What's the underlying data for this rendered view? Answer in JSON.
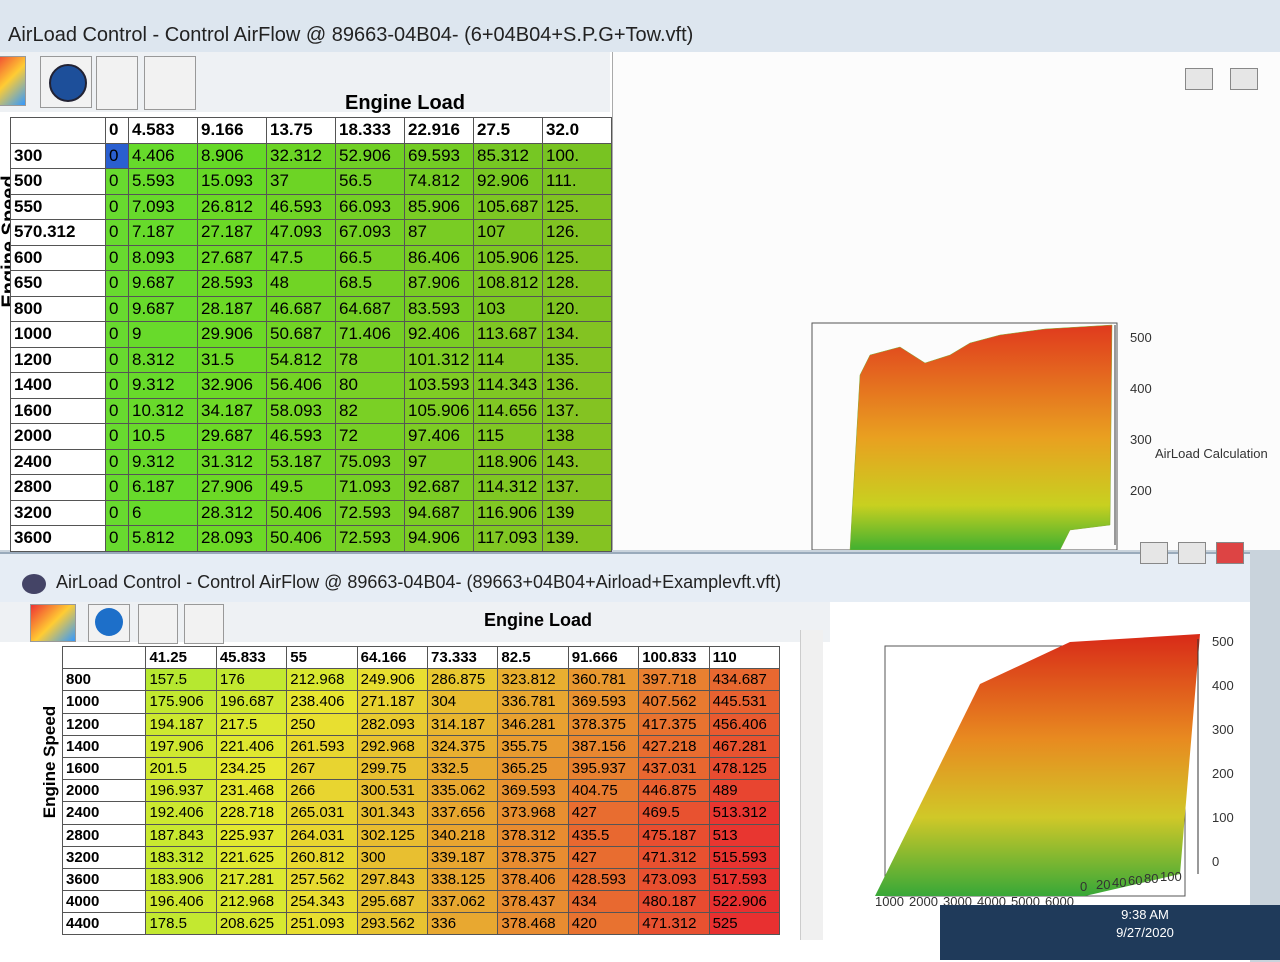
{
  "window1": {
    "title": "AirLoad Control - Control AirFlow @ 89663-04B04- (6+04B04+S.P.G+Tow.vft)",
    "table": {
      "column_title": "Engine Load",
      "row_title": "Engine Speed",
      "columns": [
        "0",
        "4.583",
        "9.166",
        "13.75",
        "18.333",
        "22.916",
        "27.5",
        "32.0"
      ],
      "rows": [
        {
          "label": "300",
          "cells": [
            "0",
            "4.406",
            "8.906",
            "32.312",
            "52.906",
            "69.593",
            "85.312",
            "100."
          ]
        },
        {
          "label": "500",
          "cells": [
            "0",
            "5.593",
            "15.093",
            "37",
            "56.5",
            "74.812",
            "92.906",
            "111."
          ]
        },
        {
          "label": "550",
          "cells": [
            "0",
            "7.093",
            "26.812",
            "46.593",
            "66.093",
            "85.906",
            "105.687",
            "125."
          ]
        },
        {
          "label": "570.312",
          "cells": [
            "0",
            "7.187",
            "27.187",
            "47.093",
            "67.093",
            "87",
            "107",
            "126."
          ]
        },
        {
          "label": "600",
          "cells": [
            "0",
            "8.093",
            "27.687",
            "47.5",
            "66.5",
            "86.406",
            "105.906",
            "125."
          ]
        },
        {
          "label": "650",
          "cells": [
            "0",
            "9.687",
            "28.593",
            "48",
            "68.5",
            "87.906",
            "108.812",
            "128."
          ]
        },
        {
          "label": "800",
          "cells": [
            "0",
            "9.687",
            "28.187",
            "46.687",
            "64.687",
            "83.593",
            "103",
            "120."
          ]
        },
        {
          "label": "1000",
          "cells": [
            "0",
            "9",
            "29.906",
            "50.687",
            "71.406",
            "92.406",
            "113.687",
            "134."
          ]
        },
        {
          "label": "1200",
          "cells": [
            "0",
            "8.312",
            "31.5",
            "54.812",
            "78",
            "101.312",
            "114",
            "135."
          ]
        },
        {
          "label": "1400",
          "cells": [
            "0",
            "9.312",
            "32.906",
            "56.406",
            "80",
            "103.593",
            "114.343",
            "136."
          ]
        },
        {
          "label": "1600",
          "cells": [
            "0",
            "10.312",
            "34.187",
            "58.093",
            "82",
            "105.906",
            "114.656",
            "137."
          ]
        },
        {
          "label": "2000",
          "cells": [
            "0",
            "10.5",
            "29.687",
            "46.593",
            "72",
            "97.406",
            "115",
            "138"
          ]
        },
        {
          "label": "2400",
          "cells": [
            "0",
            "9.312",
            "31.312",
            "53.187",
            "75.093",
            "97",
            "118.906",
            "143."
          ]
        },
        {
          "label": "2800",
          "cells": [
            "0",
            "6.187",
            "27.906",
            "49.5",
            "71.093",
            "92.687",
            "114.312",
            "137."
          ]
        },
        {
          "label": "3200",
          "cells": [
            "0",
            "6",
            "28.312",
            "50.406",
            "72.593",
            "94.687",
            "116.906",
            "139"
          ]
        },
        {
          "label": "3600",
          "cells": [
            "0",
            "5.812",
            "28.093",
            "50.406",
            "72.593",
            "94.906",
            "117.093",
            "139."
          ]
        }
      ]
    },
    "chart": {
      "z_labels": [
        "500",
        "400",
        "300",
        "200"
      ],
      "z_title": "AirLoad Calculation"
    }
  },
  "window2": {
    "title": "AirLoad Control - Control AirFlow @ 89663-04B04- (89663+04B04+Airload+Examplevft.vft)",
    "table": {
      "column_title": "Engine Load",
      "row_title": "Engine Speed",
      "columns": [
        "41.25",
        "45.833",
        "55",
        "64.166",
        "73.333",
        "82.5",
        "91.666",
        "100.833",
        "110"
      ],
      "rows": [
        {
          "label": "800",
          "cells": [
            "157.5",
            "176",
            "212.968",
            "249.906",
            "286.875",
            "323.812",
            "360.781",
            "397.718",
            "434.687"
          ]
        },
        {
          "label": "1000",
          "cells": [
            "175.906",
            "196.687",
            "238.406",
            "271.187",
            "304",
            "336.781",
            "369.593",
            "407.562",
            "445.531"
          ]
        },
        {
          "label": "1200",
          "cells": [
            "194.187",
            "217.5",
            "250",
            "282.093",
            "314.187",
            "346.281",
            "378.375",
            "417.375",
            "456.406"
          ]
        },
        {
          "label": "1400",
          "cells": [
            "197.906",
            "221.406",
            "261.593",
            "292.968",
            "324.375",
            "355.75",
            "387.156",
            "427.218",
            "467.281"
          ]
        },
        {
          "label": "1600",
          "cells": [
            "201.5",
            "234.25",
            "267",
            "299.75",
            "332.5",
            "365.25",
            "395.937",
            "437.031",
            "478.125"
          ]
        },
        {
          "label": "2000",
          "cells": [
            "196.937",
            "231.468",
            "266",
            "300.531",
            "335.062",
            "369.593",
            "404.75",
            "446.875",
            "489"
          ]
        },
        {
          "label": "2400",
          "cells": [
            "192.406",
            "228.718",
            "265.031",
            "301.343",
            "337.656",
            "373.968",
            "427",
            "469.5",
            "513.312"
          ]
        },
        {
          "label": "2800",
          "cells": [
            "187.843",
            "225.937",
            "264.031",
            "302.125",
            "340.218",
            "378.312",
            "435.5",
            "475.187",
            "513"
          ]
        },
        {
          "label": "3200",
          "cells": [
            "183.312",
            "221.625",
            "260.812",
            "300",
            "339.187",
            "378.375",
            "427",
            "471.312",
            "515.593"
          ]
        },
        {
          "label": "3600",
          "cells": [
            "183.906",
            "217.281",
            "257.562",
            "297.843",
            "338.125",
            "378.406",
            "428.593",
            "473.093",
            "517.593"
          ]
        },
        {
          "label": "4000",
          "cells": [
            "196.406",
            "212.968",
            "254.343",
            "295.687",
            "337.062",
            "378.437",
            "434",
            "480.187",
            "522.906"
          ]
        },
        {
          "label": "4400",
          "cells": [
            "178.5",
            "208.625",
            "251.093",
            "293.562",
            "336",
            "378.468",
            "420",
            "471.312",
            "525"
          ]
        }
      ]
    },
    "chart": {
      "z_labels": [
        "500",
        "400",
        "300",
        "200",
        "100",
        "0"
      ],
      "x_labels": [
        "1000",
        "2000",
        "3000",
        "4000",
        "5000",
        "6000"
      ],
      "y_labels": [
        "0",
        "20",
        "40",
        "60",
        "80",
        "100"
      ]
    }
  },
  "taskbar": {
    "time": "9:38 AM",
    "date": "9/27/2020"
  }
}
